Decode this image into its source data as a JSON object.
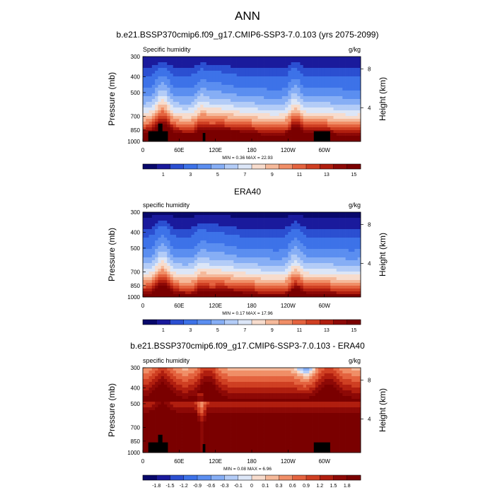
{
  "figure_title": "ANN",
  "colors": {
    "scale": [
      "#08086b",
      "#1a1a9c",
      "#2b4fd1",
      "#3d72e8",
      "#5b8ef0",
      "#86aef5",
      "#b3ccf7",
      "#dce6f7",
      "#f7dccd",
      "#f5b99a",
      "#f08e67",
      "#e4633f",
      "#cf3f22",
      "#b01e0f",
      "#8d0906",
      "#7a0000"
    ]
  },
  "chart_data": [
    {
      "type": "heatmap",
      "title": "b.e21.BSSP370cmip6.f09_g17.CMIP6-SSP3-7.0.103 (yrs 2075-2099)",
      "left_label": "Specific humidity",
      "units": "g/kg",
      "ylabel": "Pressure (mb)",
      "y2label": "Height (km)",
      "x_ticks": [
        "0",
        "60E",
        "120E",
        "180",
        "120W",
        "60W"
      ],
      "y_ticks": [
        "300",
        "400",
        "500",
        "700",
        "850",
        "1000"
      ],
      "y2_ticks": [
        "8",
        "4"
      ],
      "ylim": [
        1000,
        300
      ],
      "min": 0.36,
      "max": 22.93,
      "min_label": "MIN =",
      "min_text": "0.36",
      "max_label": "MAX =",
      "max_text": "22.93",
      "colorbar_labels": [
        "1",
        "3",
        "5",
        "7",
        "9",
        "11",
        "13",
        "15"
      ],
      "colorbar_levels": [
        0.5,
        1,
        1.5,
        2,
        3,
        4,
        5,
        6,
        7,
        8,
        9,
        10,
        11,
        12,
        13,
        14,
        15
      ]
    },
    {
      "type": "heatmap",
      "title": "ERA40",
      "left_label": "specific humidity",
      "units": "g/kg",
      "ylabel": "Pressure (mb)",
      "y2label": "Height (km)",
      "x_ticks": [
        "0",
        "60E",
        "120E",
        "180",
        "120W",
        "60W"
      ],
      "y_ticks": [
        "300",
        "400",
        "500",
        "700",
        "850",
        "1000"
      ],
      "y2_ticks": [
        "8",
        "4"
      ],
      "ylim": [
        1000,
        300
      ],
      "min": 0.17,
      "max": 17.96,
      "min_label": "MIN =",
      "min_text": "0.17",
      "max_label": "MAX =",
      "max_text": "17.96",
      "colorbar_labels": [
        "1",
        "3",
        "5",
        "7",
        "9",
        "11",
        "13",
        "15"
      ],
      "colorbar_levels": [
        0.5,
        1,
        1.5,
        2,
        3,
        4,
        5,
        6,
        7,
        8,
        9,
        10,
        11,
        12,
        13,
        14,
        15
      ]
    },
    {
      "type": "heatmap",
      "title": "b.e21.BSSP370cmip6.f09_g17.CMIP6-SSP3-7.0.103 - ERA40",
      "left_label": "specific humidity",
      "units": "g/kg",
      "ylabel": "Pressure (mb)",
      "y2label": "Height (km)",
      "x_ticks": [
        "0",
        "60E",
        "120E",
        "180",
        "120W",
        "60W"
      ],
      "y_ticks": [
        "300",
        "400",
        "500",
        "700",
        "850",
        "1000"
      ],
      "y2_ticks": [
        "8",
        "4"
      ],
      "ylim": [
        1000,
        300
      ],
      "min": 0.08,
      "max": 6.96,
      "min_label": "MIN =",
      "min_text": "0.08",
      "max_label": "MAX =",
      "max_text": "6.96",
      "colorbar_labels": [
        "-1.8",
        "-1.5",
        "-1.2",
        "-0.9",
        "-0.6",
        "-0.3",
        "-0.1",
        "0",
        "0.1",
        "0.3",
        "0.6",
        "0.9",
        "1.2",
        "1.5",
        "1.8"
      ],
      "colorbar_levels": [
        -2.1,
        -1.8,
        -1.5,
        -1.2,
        -0.9,
        -0.6,
        -0.3,
        -0.1,
        0,
        0.1,
        0.3,
        0.6,
        0.9,
        1.2,
        1.5,
        1.8,
        2.1
      ]
    }
  ]
}
